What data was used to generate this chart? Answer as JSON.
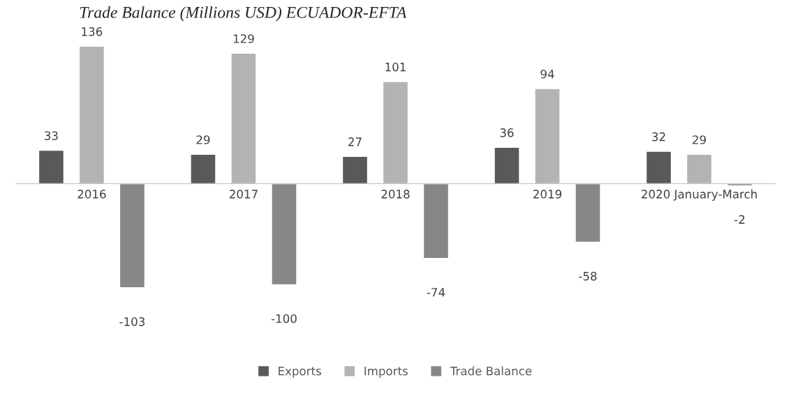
{
  "chart_data": {
    "type": "bar",
    "title": "Trade Balance (Millions USD) ECUADOR-EFTA",
    "categories": [
      "2016",
      "2017",
      "2018",
      "2019",
      "2020 January-March"
    ],
    "series": [
      {
        "name": "Exports",
        "color": "#595959",
        "values": [
          33,
          29,
          27,
          36,
          32
        ]
      },
      {
        "name": "Imports",
        "color": "#b3b3b3",
        "values": [
          136,
          129,
          101,
          94,
          29
        ]
      },
      {
        "name": "Trade Balance",
        "color": "#878787",
        "values": [
          -103,
          -100,
          -74,
          -58,
          -2
        ]
      }
    ],
    "data_labels": true,
    "legend": "bottom",
    "grid": false,
    "tick_labels": "x"
  }
}
